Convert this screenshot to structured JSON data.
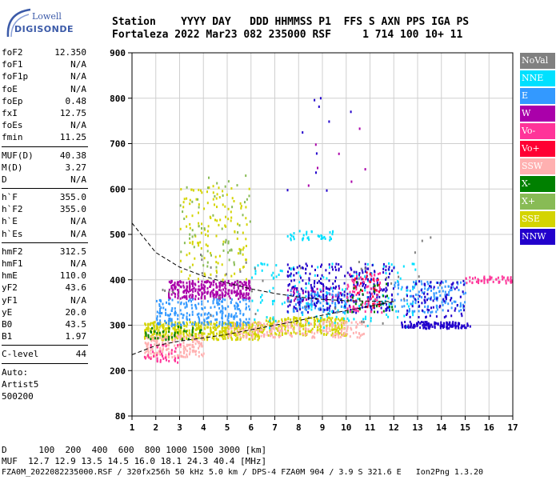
{
  "logo": {
    "top": "Lowell",
    "bottom": "DIGISONDE"
  },
  "header": {
    "line1": "Station    YYYY DAY   DDD HHMMSS P1  FFS S AXN PPS IGA PS",
    "line2": "Fortaleza 2022 Mar23 082 235000 RSF     1 714 100 10+ 11"
  },
  "params_group1": [
    {
      "label": "foF2",
      "value": "12.350"
    },
    {
      "label": "foF1",
      "value": "N/A"
    },
    {
      "label": "foF1p",
      "value": "N/A"
    },
    {
      "label": "foE",
      "value": "N/A"
    },
    {
      "label": "foEp",
      "value": "0.48"
    },
    {
      "label": "fxI",
      "value": "12.75"
    },
    {
      "label": "foEs",
      "value": "N/A"
    },
    {
      "label": "fmin",
      "value": "11.25"
    }
  ],
  "params_group2": [
    {
      "label": "MUF(D)",
      "value": "40.38"
    },
    {
      "label": "M(D)",
      "value": "3.27"
    },
    {
      "label": "D",
      "value": "N/A"
    }
  ],
  "params_group3": [
    {
      "label": "h`F",
      "value": "355.0"
    },
    {
      "label": "h`F2",
      "value": "355.0"
    },
    {
      "label": "h`E",
      "value": "N/A"
    },
    {
      "label": "h`Es",
      "value": "N/A"
    }
  ],
  "params_group4": [
    {
      "label": "hmF2",
      "value": "312.5"
    },
    {
      "label": "hmF1",
      "value": "N/A"
    },
    {
      "label": "hmE",
      "value": "110.0"
    },
    {
      "label": "yF2",
      "value": "43.6"
    },
    {
      "label": "yF1",
      "value": "N/A"
    },
    {
      "label": "yE",
      "value": "20.0"
    },
    {
      "label": "B0",
      "value": "43.5"
    },
    {
      "label": "B1",
      "value": "1.97"
    }
  ],
  "params_group5": [
    {
      "label": "C-level",
      "value": "44"
    }
  ],
  "autoscaling": {
    "line1": "Auto:",
    "line2": "Artist5",
    "line3": "500200"
  },
  "legend": [
    {
      "label": "NoVal",
      "color": "#808080"
    },
    {
      "label": "NNE",
      "color": "#00e0ff"
    },
    {
      "label": "E",
      "color": "#3399ff"
    },
    {
      "label": "W",
      "color": "#aa00aa"
    },
    {
      "label": "Vo-",
      "color": "#ff3399"
    },
    {
      "label": "Vo+",
      "color": "#ff0033"
    },
    {
      "label": "SSW",
      "color": "#ffb0b0"
    },
    {
      "label": "X-",
      "color": "#008000"
    },
    {
      "label": "X+",
      "color": "#88bb55"
    },
    {
      "label": "SSE",
      "color": "#d4d400"
    },
    {
      "label": "NNW",
      "color": "#2200cc"
    }
  ],
  "footer": {
    "line1": "D      100  200  400  600  800 1000 1500 3000 [km]",
    "line2": "MUF  12.7 12.9 13.5 14.5 16.0 18.1 24.3 40.4 [MHz]",
    "line3": "FZA0M_2022082235000.RSF / 320fx256h 50 kHz 5.0 km / DPS-4 FZA0M 904 / 3.9 S 321.6 E   Ion2Png 1.3.20"
  },
  "chart_data": {
    "type": "scatter",
    "xlim": [
      1,
      17
    ],
    "ylim": [
      80,
      900
    ],
    "x_ticks": [
      "1",
      "2",
      "3",
      "4",
      "5",
      "6",
      "7",
      "8",
      "9",
      "10",
      "11",
      "12",
      "13",
      "14",
      "15",
      "16",
      "17"
    ],
    "y_ticks": [
      "80",
      "200",
      "300",
      "400",
      "500",
      "600",
      "700",
      "800",
      "900"
    ],
    "y_tick_values": [
      80,
      200,
      300,
      400,
      500,
      600,
      700,
      800,
      900
    ],
    "grid": true,
    "clusters": [
      {
        "color": "#d4d400",
        "x": [
          1.5,
          6.5
        ],
        "y": [
          270,
          310
        ],
        "n": 500
      },
      {
        "color": "#d4d400",
        "x": [
          6.5,
          10
        ],
        "y": [
          280,
          320
        ],
        "n": 260
      },
      {
        "color": "#d4d400",
        "x": [
          3,
          6
        ],
        "y": [
          400,
          610
        ],
        "n": 130
      },
      {
        "color": "#ffb0b0",
        "x": [
          1.5,
          4
        ],
        "y": [
          230,
          280
        ],
        "n": 200
      },
      {
        "color": "#ffb0b0",
        "x": [
          5,
          11
        ],
        "y": [
          275,
          310
        ],
        "n": 200
      },
      {
        "color": "#aa00aa",
        "x": [
          2.5,
          6
        ],
        "y": [
          360,
          400
        ],
        "n": 330
      },
      {
        "color": "#aa00aa",
        "x": [
          7.5,
          9.8
        ],
        "y": [
          355,
          385
        ],
        "n": 70
      },
      {
        "color": "#3399ff",
        "x": [
          2,
          6
        ],
        "y": [
          300,
          360
        ],
        "n": 240
      },
      {
        "color": "#3399ff",
        "x": [
          7.5,
          10
        ],
        "y": [
          330,
          380
        ],
        "n": 110
      },
      {
        "color": "#3399ff",
        "x": [
          12,
          15
        ],
        "y": [
          330,
          400
        ],
        "n": 150
      },
      {
        "color": "#00e0ff",
        "x": [
          6,
          13
        ],
        "y": [
          295,
          440
        ],
        "n": 170
      },
      {
        "color": "#00e0ff",
        "x": [
          7.5,
          9.5
        ],
        "y": [
          490,
          510
        ],
        "n": 35
      },
      {
        "color": "#2200cc",
        "x": [
          7.5,
          12
        ],
        "y": [
          330,
          440
        ],
        "n": 280
      },
      {
        "color": "#2200cc",
        "x": [
          12.3,
          15.2
        ],
        "y": [
          295,
          310
        ],
        "n": 150
      },
      {
        "color": "#2200cc",
        "x": [
          12.5,
          15
        ],
        "y": [
          320,
          400
        ],
        "n": 80
      },
      {
        "color": "#ff3399",
        "x": [
          10,
          11.5
        ],
        "y": [
          330,
          420
        ],
        "n": 80
      },
      {
        "color": "#ff3399",
        "x": [
          1.5,
          3
        ],
        "y": [
          220,
          260
        ],
        "n": 40
      },
      {
        "color": "#ff3399",
        "x": [
          15,
          17
        ],
        "y": [
          395,
          410
        ],
        "n": 50
      },
      {
        "color": "#008000",
        "x": [
          1.5,
          4
        ],
        "y": [
          270,
          300
        ],
        "n": 40
      },
      {
        "color": "#008000",
        "x": [
          10,
          12
        ],
        "y": [
          330,
          400
        ],
        "n": 30
      },
      {
        "color": "#88bb55",
        "x": [
          3,
          6
        ],
        "y": [
          430,
          640
        ],
        "n": 60
      },
      {
        "color": "#ff0033",
        "x": [
          10.2,
          11.5
        ],
        "y": [
          340,
          420
        ],
        "n": 25
      },
      {
        "color": "#808080",
        "x": [
          2,
          14
        ],
        "y": [
          300,
          500
        ],
        "n": 40
      },
      {
        "color": "#2200cc",
        "x": [
          7.5,
          11
        ],
        "y": [
          560,
          810
        ],
        "n": 10
      },
      {
        "color": "#aa00aa",
        "x": [
          8,
          11
        ],
        "y": [
          600,
          760
        ],
        "n": 7
      }
    ],
    "curve_lower": {
      "x": [
        1,
        2,
        3,
        4,
        5,
        6,
        7,
        8,
        9,
        10,
        11,
        12
      ],
      "y": [
        235,
        255,
        265,
        272,
        280,
        290,
        300,
        310,
        322,
        332,
        342,
        352
      ]
    },
    "curve_upper": {
      "x": [
        1,
        2,
        3,
        4,
        5,
        6,
        7,
        8,
        9,
        10,
        11,
        12
      ],
      "y": [
        525,
        460,
        428,
        408,
        393,
        380,
        370,
        362,
        357,
        354,
        353,
        352
      ]
    }
  }
}
